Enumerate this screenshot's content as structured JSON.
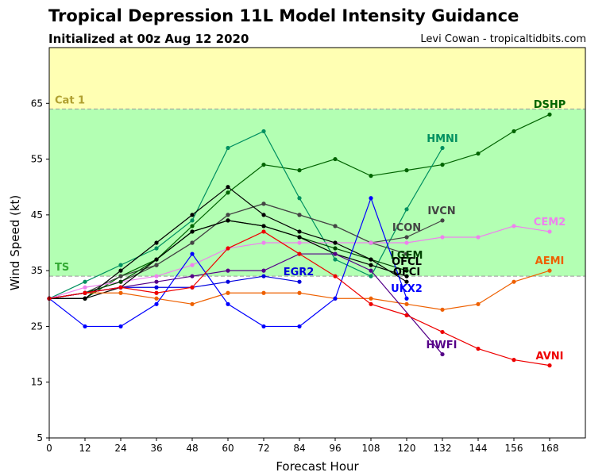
{
  "header": {
    "title": "Tropical Depression 11L Model Intensity Guidance",
    "subtitle": "Initialized at 00z Aug 12 2020",
    "credit": "Levi Cowan - tropicaltidbits.com"
  },
  "chart_data": {
    "type": "line",
    "xlabel": "Forecast Hour",
    "ylabel": "Wind Speed (kt)",
    "xlim": [
      0,
      180
    ],
    "ylim": [
      5,
      75
    ],
    "xticks": [
      0,
      12,
      24,
      36,
      48,
      60,
      72,
      84,
      96,
      108,
      120,
      132,
      144,
      156,
      168
    ],
    "yticks": [
      5,
      15,
      25,
      35,
      45,
      55,
      65
    ],
    "bands": [
      {
        "label": "TS",
        "from": 34,
        "to": 64,
        "color": "#b3ffb3",
        "label_color": "#33aa33"
      },
      {
        "label": "Cat 1",
        "from": 64,
        "to": 75,
        "color": "#ffffb3",
        "label_color": "#b0a030"
      }
    ],
    "series": [
      {
        "name": "DSHP",
        "color": "#006400",
        "x": [
          0,
          12,
          24,
          36,
          48,
          60,
          72,
          84,
          96,
          108,
          120,
          132,
          144,
          156,
          168
        ],
        "y": [
          30,
          30,
          34,
          37,
          43,
          49,
          54,
          53,
          55,
          52,
          53,
          54,
          56,
          60,
          63
        ]
      },
      {
        "name": "HMNI",
        "color": "#009060",
        "x": [
          0,
          12,
          24,
          36,
          48,
          60,
          72,
          84,
          96,
          108,
          120,
          132
        ],
        "y": [
          30,
          33,
          36,
          39,
          44,
          57,
          60,
          48,
          37,
          34,
          46,
          57
        ]
      },
      {
        "name": "IVCN",
        "color": "#444444",
        "x": [
          0,
          12,
          24,
          36,
          48,
          60,
          72,
          84,
          96,
          108,
          120,
          132
        ],
        "y": [
          30,
          31,
          34,
          36,
          40,
          45,
          47,
          45,
          43,
          40,
          41,
          44
        ]
      },
      {
        "name": "ICON",
        "color": "#444444",
        "x": [
          0,
          12,
          24,
          36,
          48,
          60,
          72,
          84,
          96,
          108,
          120
        ],
        "y": [
          30,
          31,
          33,
          36,
          40,
          45,
          47,
          45,
          43,
          40,
          38
        ]
      },
      {
        "name": "CEM2",
        "color": "#ee82ee",
        "x": [
          0,
          12,
          24,
          36,
          48,
          60,
          72,
          84,
          96,
          108,
          120,
          132,
          144,
          156,
          168
        ],
        "y": [
          30,
          32,
          33,
          34,
          36,
          39,
          40,
          40,
          40,
          40,
          40,
          41,
          41,
          43,
          42
        ]
      },
      {
        "name": "LGEM",
        "color": "#004400",
        "x": [
          0,
          12,
          24,
          36,
          48,
          60,
          72,
          84,
          96,
          108,
          120
        ],
        "y": [
          30,
          31,
          33,
          37,
          42,
          44,
          43,
          41,
          39,
          37,
          35
        ]
      },
      {
        "name": "OFCL",
        "color": "#000000",
        "x": [
          0,
          12,
          24,
          36,
          48,
          60,
          72,
          84,
          96,
          108,
          120
        ],
        "y": [
          30,
          30,
          35,
          40,
          45,
          50,
          45,
          42,
          40,
          37,
          33
        ]
      },
      {
        "name": "OFCI",
        "color": "#000000",
        "x": [
          0,
          12,
          24,
          36,
          48,
          60,
          72,
          84,
          96,
          108,
          120
        ],
        "y": [
          30,
          30,
          32,
          37,
          42,
          44,
          43,
          41,
          38,
          36,
          34
        ]
      },
      {
        "name": "AEMI",
        "color": "#ee6000",
        "x": [
          0,
          12,
          24,
          36,
          48,
          60,
          72,
          84,
          96,
          108,
          120,
          132,
          144,
          156,
          168
        ],
        "y": [
          30,
          31,
          31,
          30,
          29,
          31,
          31,
          31,
          30,
          30,
          29,
          28,
          29,
          33,
          35
        ]
      },
      {
        "name": "EGR2",
        "color": "#0000dd",
        "x": [
          0,
          12,
          24,
          36,
          48,
          60,
          72,
          84
        ],
        "y": [
          30,
          31,
          32,
          32,
          32,
          33,
          34,
          33
        ]
      },
      {
        "name": "UKX2",
        "color": "#0000ff",
        "x": [
          0,
          12,
          24,
          36,
          48,
          60,
          72,
          84,
          96,
          108,
          120
        ],
        "y": [
          30,
          25,
          25,
          29,
          38,
          29,
          25,
          25,
          30,
          48,
          30
        ]
      },
      {
        "name": "HWFI",
        "color": "#550088",
        "x": [
          0,
          12,
          24,
          36,
          48,
          60,
          72,
          84,
          96,
          108,
          132
        ],
        "y": [
          30,
          31,
          32,
          33,
          34,
          35,
          35,
          38,
          38,
          35,
          20
        ]
      },
      {
        "name": "AVNI",
        "color": "#ee0000",
        "x": [
          0,
          12,
          24,
          36,
          48,
          60,
          72,
          84,
          96,
          108,
          120,
          132,
          144,
          156,
          168
        ],
        "y": [
          30,
          31,
          32,
          31,
          32,
          39,
          42,
          38,
          34,
          29,
          27,
          24,
          21,
          19,
          18
        ]
      }
    ]
  }
}
